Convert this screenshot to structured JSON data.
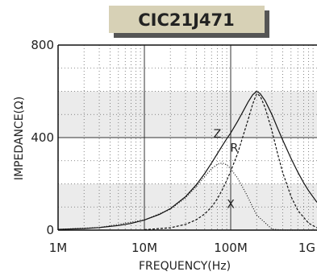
{
  "chart_data": {
    "type": "line",
    "title": "CIC21J471",
    "xlabel": "FREQUENCY(Hz)",
    "ylabel": "IMPEDANCE(Ω)",
    "x_scale": "log",
    "xlim": [
      1000000,
      1000000000
    ],
    "ylim": [
      0,
      800
    ],
    "x_ticks": [
      {
        "value": 1000000,
        "label": "1M"
      },
      {
        "value": 10000000,
        "label": "10M"
      },
      {
        "value": 100000000,
        "label": "100M"
      },
      {
        "value": 1000000000,
        "label": "1G"
      }
    ],
    "y_ticks": [
      {
        "value": 0,
        "label": "0"
      },
      {
        "value": 400,
        "label": "400"
      },
      {
        "value": 800,
        "label": "800"
      }
    ],
    "shaded_bands": [
      [
        0,
        200
      ],
      [
        400,
        600
      ]
    ],
    "grid": true,
    "colors": {
      "band": "#ebebeb",
      "grid": "#666666",
      "title_box": "#d7d1b6",
      "title_shadow": "#555555"
    },
    "series": [
      {
        "name": "Z",
        "style": "solid",
        "x": [
          1000000,
          2000000,
          3000000,
          5000000,
          7000000,
          10000000,
          15000000,
          20000000,
          30000000,
          40000000,
          50000000,
          60000000,
          70000000,
          80000000,
          90000000,
          100000000,
          120000000,
          140000000,
          160000000,
          180000000,
          200000000,
          220000000,
          250000000,
          300000000,
          350000000,
          400000000,
          500000000,
          600000000,
          700000000,
          800000000,
          1000000000
        ],
        "y": [
          3,
          7,
          11,
          20,
          29,
          44,
          68,
          93,
          145,
          196,
          245,
          290,
          330,
          365,
          395,
          420,
          470,
          515,
          555,
          585,
          600,
          590,
          560,
          500,
          440,
          390,
          310,
          250,
          205,
          170,
          120
        ]
      },
      {
        "name": "R",
        "style": "dashed",
        "x": [
          10000000,
          20000000,
          30000000,
          40000000,
          50000000,
          60000000,
          70000000,
          80000000,
          90000000,
          100000000,
          120000000,
          140000000,
          160000000,
          180000000,
          200000000,
          220000000,
          250000000,
          300000000,
          350000000,
          400000000,
          500000000,
          600000000,
          800000000,
          1000000000
        ],
        "y": [
          2,
          10,
          25,
          45,
          70,
          100,
          135,
          175,
          215,
          255,
          330,
          410,
          480,
          545,
          590,
          580,
          530,
          430,
          330,
          250,
          145,
          85,
          30,
          10
        ]
      },
      {
        "name": "X",
        "style": "dotted",
        "x": [
          1000000,
          3000000,
          10000000,
          20000000,
          30000000,
          40000000,
          50000000,
          60000000,
          70000000,
          80000000,
          90000000,
          100000000,
          120000000,
          150000000,
          200000000,
          300000000,
          400000000,
          500000000,
          700000000,
          1000000000
        ],
        "y": [
          3,
          11,
          44,
          90,
          140,
          188,
          232,
          265,
          285,
          290,
          282,
          265,
          225,
          160,
          65,
          5,
          0,
          0,
          0,
          0
        ]
      }
    ]
  }
}
